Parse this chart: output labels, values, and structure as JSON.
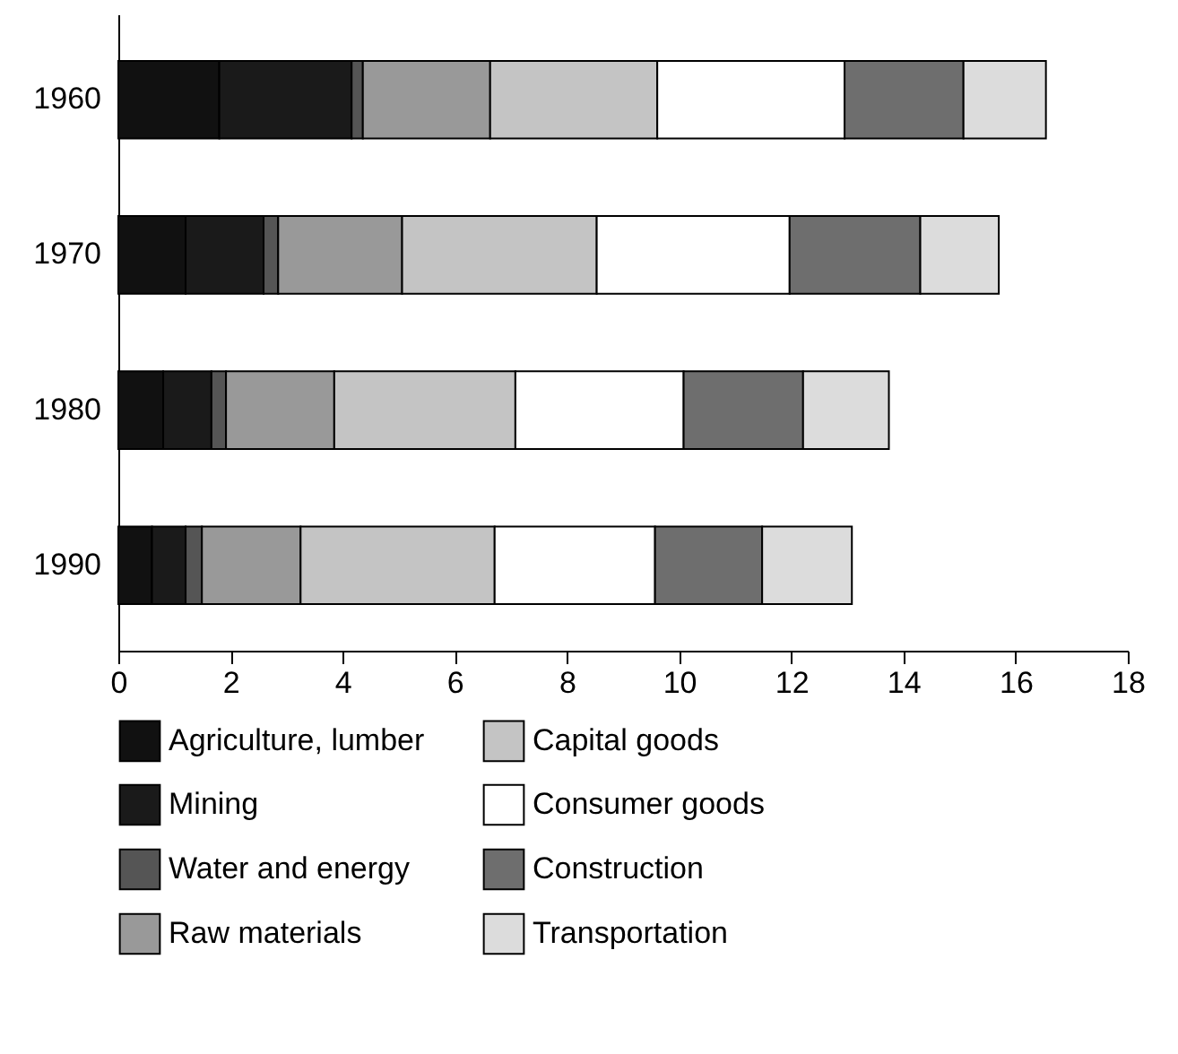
{
  "chart_data": {
    "type": "bar",
    "orientation": "horizontal",
    "stacked": true,
    "categories": [
      "1960",
      "1970",
      "1980",
      "1990"
    ],
    "series": [
      {
        "name": "Agriculture, lumber",
        "color": "#111111",
        "values": [
          1.8,
          1.2,
          0.8,
          0.6
        ]
      },
      {
        "name": "Mining",
        "color": "#1a1a1a",
        "values": [
          2.36,
          1.39,
          0.86,
          0.6
        ]
      },
      {
        "name": "Water and energy",
        "color": "#555555",
        "values": [
          0.2,
          0.26,
          0.26,
          0.29
        ]
      },
      {
        "name": "Raw materials",
        "color": "#999999",
        "values": [
          2.27,
          2.21,
          1.93,
          1.76
        ]
      },
      {
        "name": "Capital goods",
        "color": "#c4c4c4",
        "values": [
          2.98,
          3.47,
          3.23,
          3.46
        ]
      },
      {
        "name": "Consumer goods",
        "color": "#ffffff",
        "values": [
          3.34,
          3.44,
          3.0,
          2.86
        ]
      },
      {
        "name": "Construction",
        "color": "#6e6e6e",
        "values": [
          2.12,
          2.33,
          2.13,
          1.91
        ]
      },
      {
        "name": "Transportation",
        "color": "#dcdcdc",
        "values": [
          1.47,
          1.4,
          1.53,
          1.6
        ]
      }
    ],
    "xlim": [
      0,
      18
    ],
    "xticks": [
      0,
      2,
      4,
      6,
      8,
      10,
      12,
      14,
      16,
      18
    ],
    "legend": "bottom",
    "grid": false
  }
}
